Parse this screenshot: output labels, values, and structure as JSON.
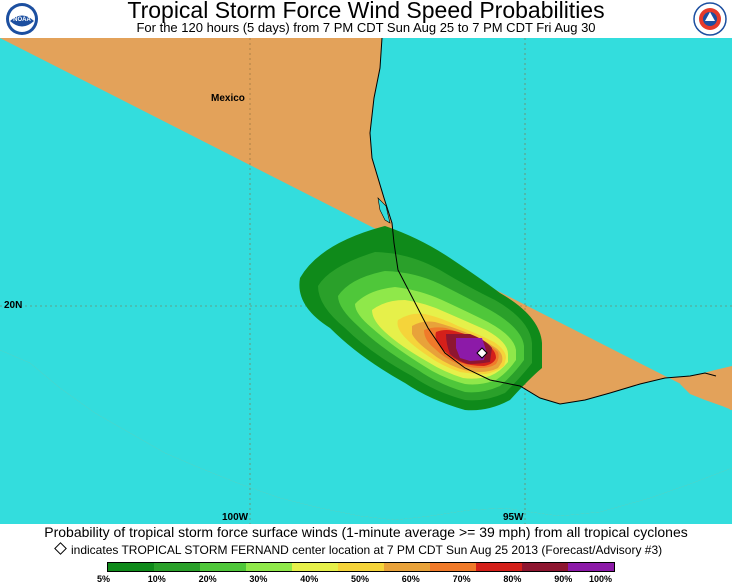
{
  "header": {
    "title": "Tropical Storm Force Wind Speed Probabilities",
    "subtitle": "For the 120 hours (5 days) from 7 PM CDT Sun Aug 25 to 7 PM CDT Fri Aug 30",
    "left_logo": "NOAA",
    "right_logo": "NATIONAL WEATHER SERVICE"
  },
  "map": {
    "country_label": "Mexico",
    "lat_labels": [
      "20N"
    ],
    "lon_labels": [
      "100W",
      "95W"
    ],
    "land_color": "#e3a25a",
    "water_color": "#33dddd",
    "storm_marker": "diamond-icon"
  },
  "caption": "Probability of tropical storm force surface winds (1-minute average >= 39 mph) from all tropical cyclones",
  "note": "indicates TROPICAL STORM FERNAND center location at 7 PM CDT Sun Aug 25 2013 (Forecast/Advisory #3)",
  "legend": {
    "labels": [
      "5%",
      "10%",
      "20%",
      "30%",
      "40%",
      "50%",
      "60%",
      "70%",
      "80%",
      "90%",
      "100%"
    ],
    "colors": [
      "#0f8a1a",
      "#2aa02a",
      "#4fc73a",
      "#8fe84a",
      "#e6f04a",
      "#f5d43a",
      "#e8a23a",
      "#f07a2a",
      "#d4201a",
      "#8e1630",
      "#8c1aa8"
    ]
  }
}
